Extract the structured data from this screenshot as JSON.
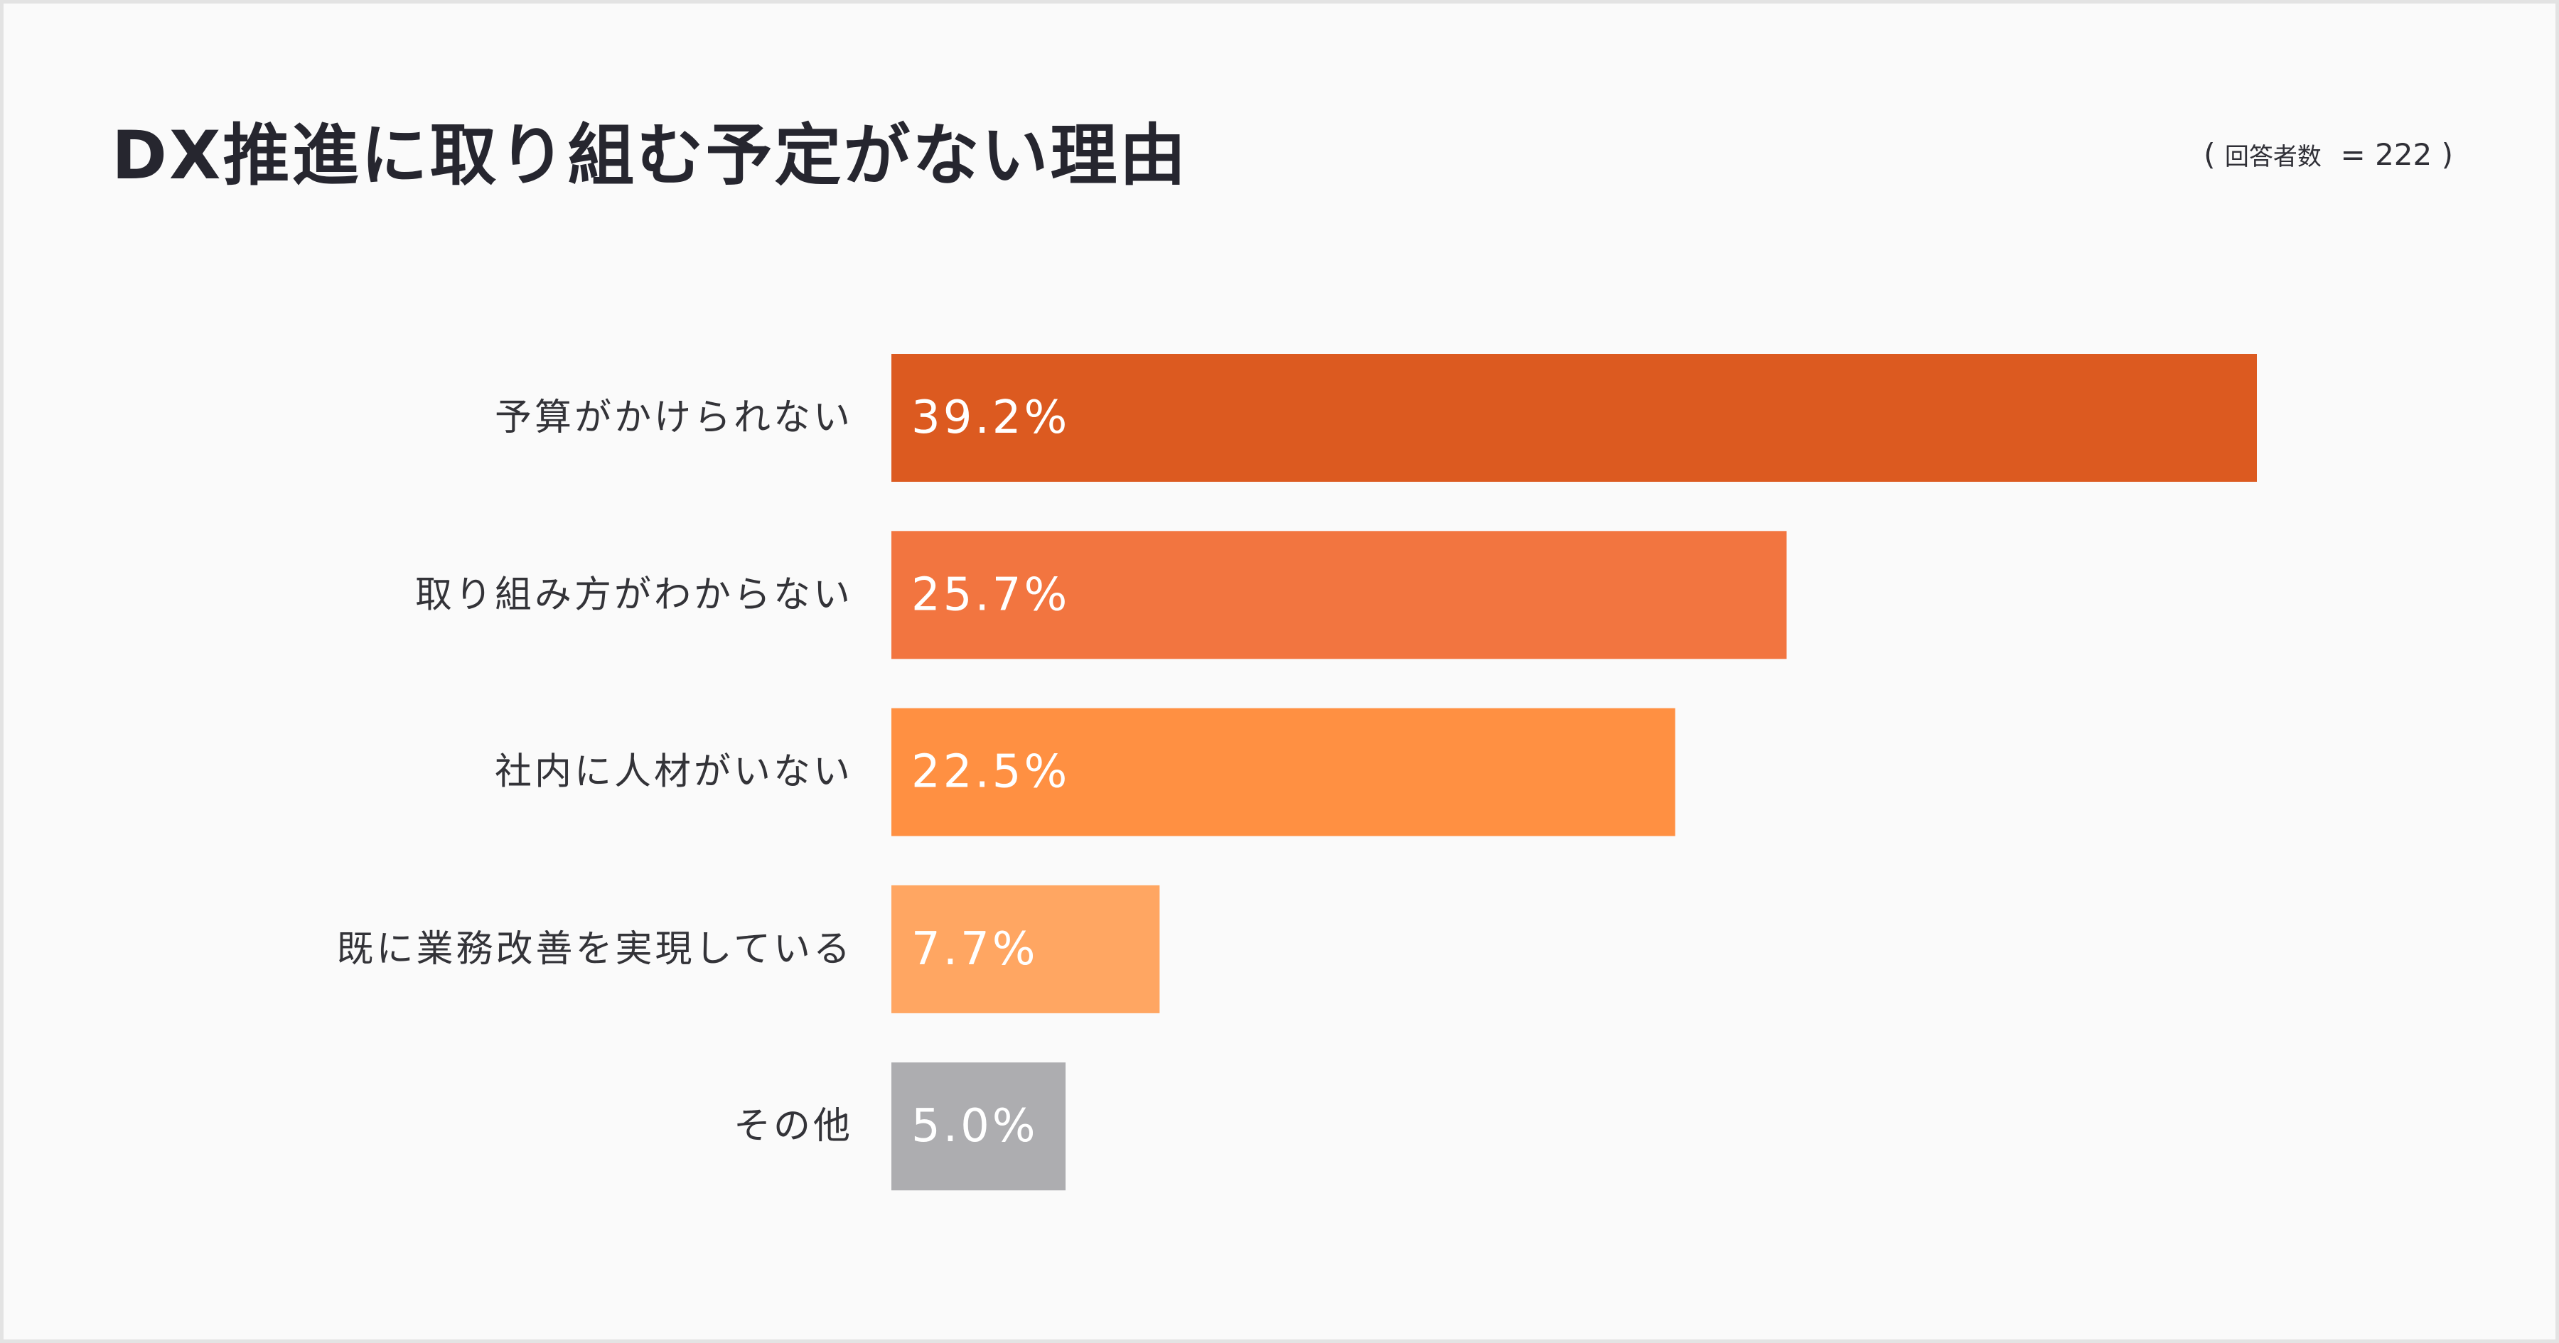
{
  "header": {
    "title": "DX推進に取り組む予定がない理由",
    "respondents_label": "回答者数",
    "respondents_value": "= 222"
  },
  "chart_data": {
    "type": "bar",
    "orientation": "horizontal",
    "title": "DX推進に取り組む予定がない理由",
    "categories": [
      "予算がかけられない",
      "取り組み方がわからない",
      "社内に人材がいない",
      "既に業務改善を実現している",
      "その他"
    ],
    "values": [
      39.2,
      25.7,
      22.5,
      7.7,
      5.0
    ],
    "value_labels": [
      "39.2%",
      "25.7%",
      "22.5%",
      "7.7%",
      "5.0%"
    ],
    "unit": "%",
    "xlim": [
      0,
      39.2
    ],
    "colors": [
      "#dc5a20",
      "#f27540",
      "#ff9042",
      "#ffa662",
      "#adadb0"
    ],
    "grid": false,
    "legend": "none"
  }
}
